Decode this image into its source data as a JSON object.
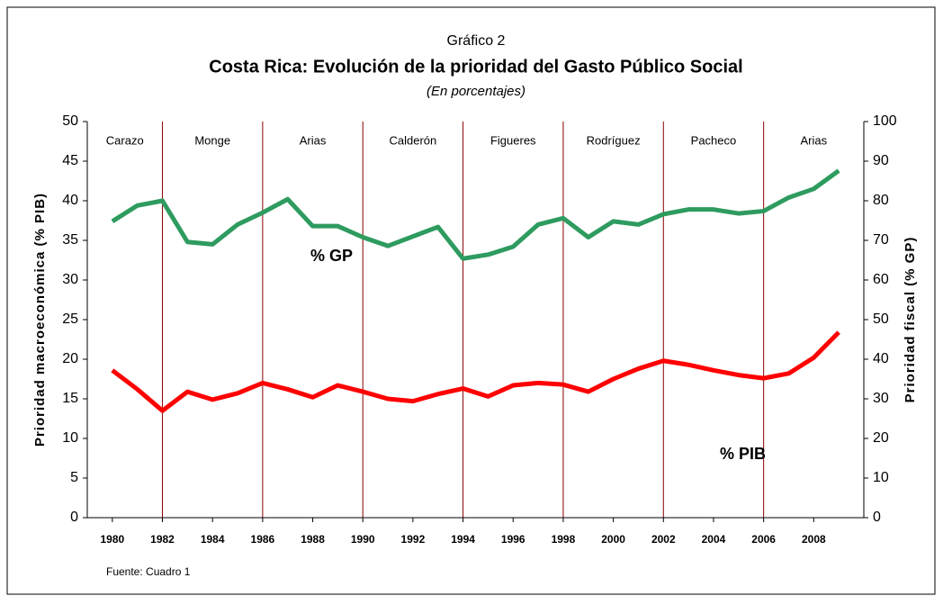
{
  "chart_data": {
    "type": "line",
    "title": "Costa Rica: Evolución de la prioridad del Gasto Público Social",
    "supertitle": "Gráfico 2",
    "subtitle": "(En porcentajes)",
    "ylabel": "Prioridad macroeconómica (% PIB)",
    "y2label": "Prioridad fiscal (% GP)",
    "source": "Fuente: Cuadro 1",
    "x": [
      1980,
      1981,
      1982,
      1983,
      1984,
      1985,
      1986,
      1987,
      1988,
      1989,
      1990,
      1991,
      1992,
      1993,
      1994,
      1995,
      1996,
      1997,
      1998,
      1999,
      2000,
      2001,
      2002,
      2003,
      2004,
      2005,
      2006,
      2007,
      2008,
      2009
    ],
    "xlim": [
      1979,
      2010
    ],
    "xticks": [
      1980,
      1982,
      1984,
      1986,
      1988,
      1990,
      1992,
      1994,
      1996,
      1998,
      2000,
      2002,
      2004,
      2006,
      2008
    ],
    "ylim": [
      0,
      50
    ],
    "yticks": [
      0,
      5,
      10,
      15,
      20,
      25,
      30,
      35,
      40,
      45,
      50
    ],
    "y2lim": [
      0,
      100
    ],
    "y2ticks": [
      0,
      10,
      20,
      30,
      40,
      50,
      60,
      70,
      80,
      90,
      100
    ],
    "period_boundaries": [
      1982,
      1986,
      1990,
      1994,
      1998,
      2002,
      2006
    ],
    "periods": [
      "Carazo",
      "Monge",
      "Arias",
      "Calderón",
      "Figueres",
      "Rodríguez",
      "Pacheco",
      "Arias"
    ],
    "series": [
      {
        "name": "% PIB",
        "color": "#ff0000",
        "axis": "y",
        "values": [
          18.6,
          16.2,
          13.5,
          15.9,
          14.9,
          15.7,
          17.0,
          16.2,
          15.2,
          16.7,
          15.9,
          15.0,
          14.7,
          15.6,
          16.3,
          15.3,
          16.7,
          17.0,
          16.8,
          15.9,
          17.5,
          18.8,
          19.8,
          19.3,
          18.6,
          18.0,
          17.6,
          18.2,
          20.2,
          23.4
        ]
      },
      {
        "name": "% GP",
        "color": "#2e9b5f",
        "axis": "y2",
        "values": [
          74.8,
          78.8,
          80.0,
          69.6,
          69.0,
          74.0,
          77.0,
          80.4,
          73.6,
          73.6,
          70.8,
          68.6,
          71.0,
          73.4,
          65.4,
          66.4,
          68.4,
          74.0,
          75.6,
          70.8,
          74.8,
          74.0,
          76.6,
          77.8,
          77.8,
          76.8,
          77.4,
          80.8,
          83.0,
          87.6
        ]
      }
    ]
  }
}
